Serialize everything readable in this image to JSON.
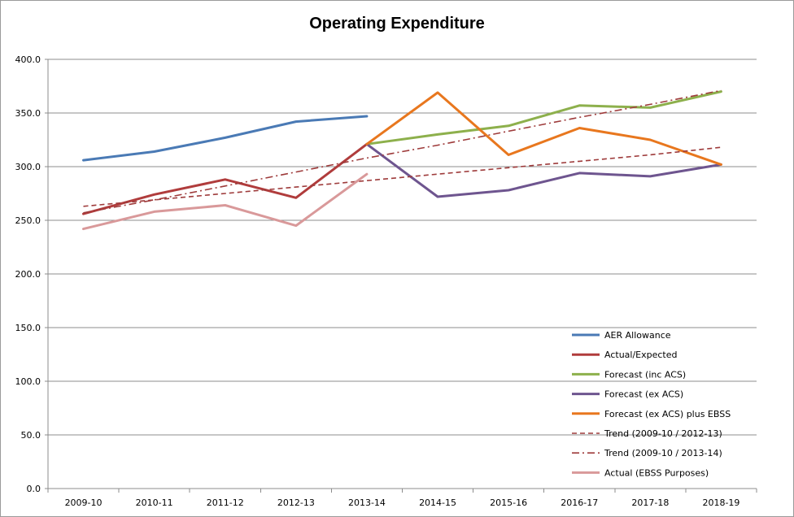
{
  "chart_data": {
    "type": "line",
    "title": "Operating Expenditure",
    "xlabel": "",
    "ylabel": "",
    "categories": [
      "2009-10",
      "2010-11",
      "2011-12",
      "2012-13",
      "2013-14",
      "2014-15",
      "2015-16",
      "2016-17",
      "2017-18",
      "2018-19"
    ],
    "ylim": [
      0,
      400
    ],
    "yticks": [
      "0.0",
      "50.0",
      "100.0",
      "150.0",
      "200.0",
      "250.0",
      "300.0",
      "350.0",
      "400.0"
    ],
    "grid": true,
    "legend_position": "bottom-right",
    "series": [
      {
        "name": "AER Allowance",
        "color": "#4a7ab5",
        "style": "solid",
        "values": [
          306,
          314,
          327,
          342,
          347,
          null,
          null,
          null,
          null,
          null
        ]
      },
      {
        "name": "Actual/Expected",
        "color": "#b03c3c",
        "style": "solid",
        "values": [
          256,
          274,
          288,
          271,
          321,
          null,
          null,
          null,
          null,
          null
        ]
      },
      {
        "name": "Forecast (inc ACS)",
        "color": "#8db04c",
        "style": "solid",
        "values": [
          null,
          null,
          null,
          null,
          321,
          330,
          338,
          357,
          355,
          370
        ]
      },
      {
        "name": "Forecast (ex ACS)",
        "color": "#6e558f",
        "style": "solid",
        "values": [
          null,
          null,
          null,
          null,
          321,
          272,
          278,
          294,
          291,
          302
        ]
      },
      {
        "name": "Forecast (ex ACS) plus EBSS",
        "color": "#e8771e",
        "style": "solid",
        "values": [
          null,
          null,
          null,
          null,
          321,
          369,
          311,
          336,
          325,
          302
        ]
      },
      {
        "name": "Trend (2009-10 / 2012-13)",
        "color": "#9e3b3b",
        "style": "dashed",
        "values": [
          263,
          269,
          275,
          281,
          287,
          293,
          299,
          305,
          311,
          318
        ]
      },
      {
        "name": "Trend (2009-10 / 2013-14)",
        "color": "#9e3b3b",
        "style": "dashdot",
        "values": [
          257,
          269,
          282,
          295,
          308,
          320,
          333,
          346,
          358,
          371
        ]
      },
      {
        "name": "Actual (EBSS Purposes)",
        "color": "#d9999a",
        "style": "solid",
        "values": [
          242,
          258,
          264,
          245,
          293,
          null,
          null,
          null,
          null,
          null
        ]
      }
    ]
  }
}
